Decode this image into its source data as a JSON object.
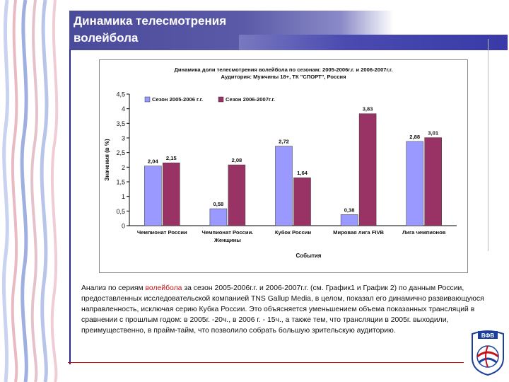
{
  "slide": {
    "title": "Динамика телесмотрения волейбола"
  },
  "description": {
    "before": "Анализ по сериям ",
    "highlight": "волейбола",
    "after": " за сезон 2005-2006г.г. и 2006-2007г.г. (см. График1 и График 2) по данным России, предоставленных исследовательской компанией TNS Gallup Media, в целом, показал его динамично развивающуюся направленность, исключая серию  Кубка России. Это объясняется уменьшением объема показанных трансляций в сравнении с прошлым годом: в 2005г. -20ч., в 2006 г. - 15ч., а также тем, что трансляции в 2005г. выходили, преимущественно, в прайм-тайм, что позволило собрать большую зрительскую аудиторию."
  },
  "logo": {
    "text": "ВФВ"
  },
  "colors": {
    "series1": "#9999ff",
    "series2": "#993366",
    "title_bar": "#4a4a9a",
    "highlight": "#c8101a"
  },
  "chart_data": {
    "type": "bar",
    "title": "Динамика доли телесмотрения волейбола по сезонам: 2005-2006г.г. и 2006-2007г.г.",
    "subtitle": "Аудитория: Мужчины 18+, ТК \"СПОРТ\", Россия",
    "xlabel": "События",
    "ylabel": "Значения (в %)",
    "ylim": [
      0,
      4.5
    ],
    "yticks": [
      "0",
      "0,5",
      "1",
      "1,5",
      "2",
      "2,5",
      "3",
      "3,5",
      "4",
      "4,5"
    ],
    "grid": false,
    "legend_position": "top-left",
    "categories": [
      [
        "Чемпионат России"
      ],
      [
        "Чемпионат России.",
        "Женщины"
      ],
      [
        "Кубок России"
      ],
      [
        "Мировая лига FIVB"
      ],
      [
        "Лига чемпионов"
      ]
    ],
    "series": [
      {
        "name": "Сезон 2005-2006 г.г.",
        "values": [
          2.04,
          0.58,
          2.72,
          0.38,
          2.88
        ],
        "labels": [
          "2,04",
          "0,58",
          "2,72",
          "0,38",
          "2,88"
        ]
      },
      {
        "name": "Сезон 2006-2007г.г.",
        "values": [
          2.15,
          2.08,
          1.64,
          3.83,
          3.01
        ],
        "labels": [
          "2,15",
          "2,08",
          "1,64",
          "3,83",
          "3,01"
        ]
      }
    ]
  }
}
